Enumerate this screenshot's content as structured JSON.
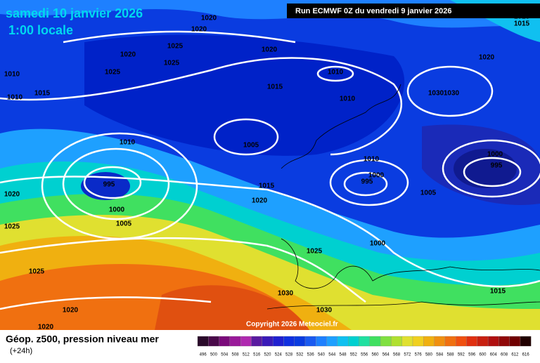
{
  "header": {
    "date": "samedi 10 janvier 2026",
    "time": "1:00 locale",
    "run": "Run ECMWF 0Z du vendredi 9 janvier 2026",
    "copyright": "Copyright 2026 Meteociel.fr"
  },
  "footer": {
    "title": "Géop. z500, pression niveau mer",
    "lead": "(+24h)"
  },
  "isobar_labels": [
    "1020",
    "1020",
    "1025",
    "1020",
    "1025",
    "1025",
    "1020",
    "1010",
    "1010",
    "1015",
    "1015",
    "1010",
    "1010",
    "1030",
    "1030",
    "1020",
    "1015",
    "1015",
    "1010",
    "1005",
    "995",
    "1000",
    "1005",
    "1015",
    "1020",
    "1010",
    "1000",
    "995",
    "1005",
    "1000",
    "995",
    "1020",
    "1025",
    "1025",
    "1025",
    "1000",
    "1030",
    "1030",
    "1015",
    "1020",
    "1020"
  ],
  "legend": {
    "values": [
      "496",
      "500",
      "504",
      "508",
      "512",
      "516",
      "520",
      "524",
      "528",
      "532",
      "536",
      "540",
      "544",
      "548",
      "552",
      "556",
      "560",
      "564",
      "568",
      "572",
      "576",
      "580",
      "584",
      "588",
      "592",
      "596",
      "600",
      "604",
      "608",
      "612",
      "616"
    ],
    "colors": [
      "#2a0a2a",
      "#4a0a4a",
      "#7a0a7a",
      "#9a1a9a",
      "#b02ab0",
      "#5a1aa0",
      "#3a1ab8",
      "#2020d0",
      "#1030e0",
      "#0a3ce0",
      "#1a5af0",
      "#1e80ff",
      "#1ea0ff",
      "#10c0f0",
      "#00d0d0",
      "#20e0a0",
      "#40e060",
      "#80e040",
      "#b0e030",
      "#e0e030",
      "#f0d020",
      "#f0b010",
      "#f09010",
      "#f07010",
      "#f05010",
      "#e03010",
      "#c82010",
      "#b01010",
      "#900808",
      "#700000",
      "#200000"
    ]
  }
}
